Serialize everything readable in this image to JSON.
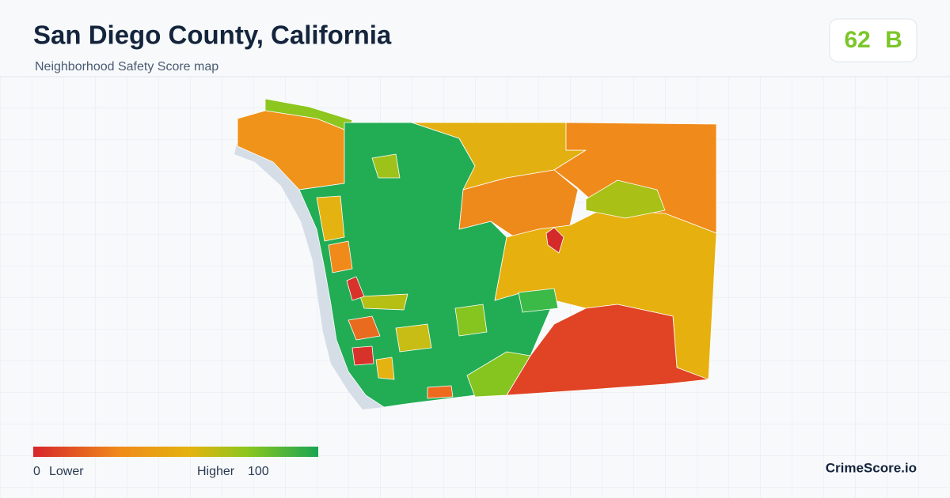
{
  "header": {
    "title": "San Diego County, California",
    "subtitle": "Neighborhood Safety Score map"
  },
  "score": {
    "value": 62,
    "grade": "B"
  },
  "legend": {
    "min": 0,
    "min_label": "Lower",
    "max_label": "Higher",
    "max": 100
  },
  "brand": "CrimeScore.io"
}
